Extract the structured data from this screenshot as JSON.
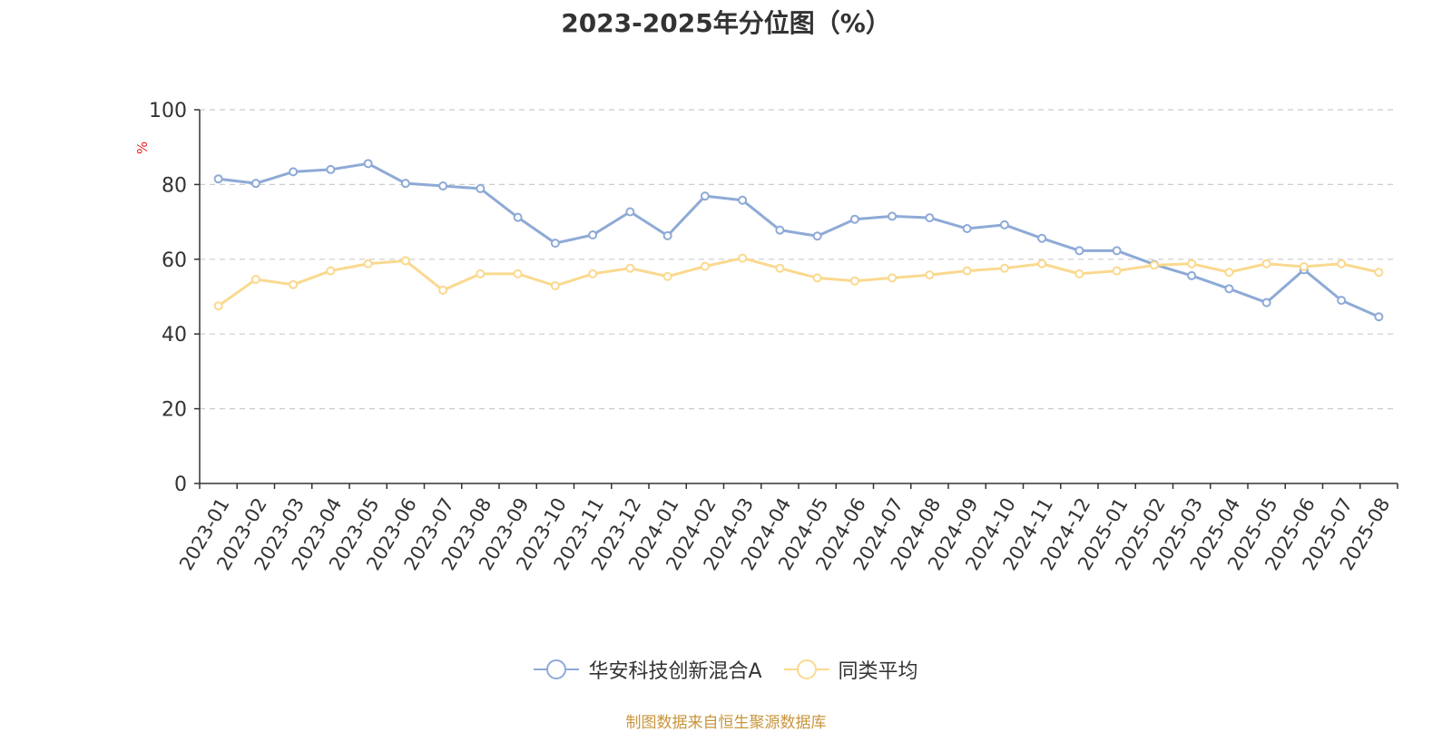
{
  "chart_data": {
    "type": "line",
    "title": "2023-2025年分位图（%）",
    "ylabel": "%",
    "ylim": [
      0,
      100
    ],
    "yticks": [
      0,
      20,
      40,
      60,
      80,
      100
    ],
    "grid": true,
    "legend_position": "bottom",
    "categories": [
      "2023-01",
      "2023-02",
      "2023-03",
      "2023-04",
      "2023-05",
      "2023-06",
      "2023-07",
      "2023-08",
      "2023-09",
      "2023-10",
      "2023-11",
      "2023-12",
      "2024-01",
      "2024-02",
      "2024-03",
      "2024-04",
      "2024-05",
      "2024-06",
      "2024-07",
      "2024-08",
      "2024-09",
      "2024-10",
      "2024-11",
      "2024-12",
      "2025-01",
      "2025-02",
      "2025-03",
      "2025-04",
      "2025-05",
      "2025-06",
      "2025-07",
      "2025-08"
    ],
    "series": [
      {
        "name": "华安科技创新混合A",
        "color": "#8eaad6",
        "values": [
          81.5,
          80.3,
          83.4,
          84.0,
          85.6,
          80.3,
          79.6,
          78.9,
          71.2,
          64.3,
          66.5,
          72.7,
          66.3,
          76.9,
          75.8,
          67.8,
          66.2,
          70.7,
          71.5,
          71.1,
          68.2,
          69.2,
          65.6,
          62.3,
          62.3,
          58.6,
          55.6,
          52.1,
          48.4,
          57.2,
          49.0,
          44.6
        ]
      },
      {
        "name": "同类平均",
        "color": "#fad98f",
        "values": [
          47.5,
          54.6,
          53.2,
          56.9,
          58.8,
          59.6,
          51.7,
          56.1,
          56.1,
          52.9,
          56.1,
          57.6,
          55.4,
          58.1,
          60.3,
          57.6,
          55.0,
          54.2,
          55.0,
          55.8,
          56.9,
          57.6,
          58.8,
          56.1,
          56.9,
          58.4,
          58.8,
          56.5,
          58.8,
          58.0,
          58.8,
          56.5
        ]
      }
    ]
  },
  "footer": {
    "source": "制图数据来自恒生聚源数据库"
  }
}
